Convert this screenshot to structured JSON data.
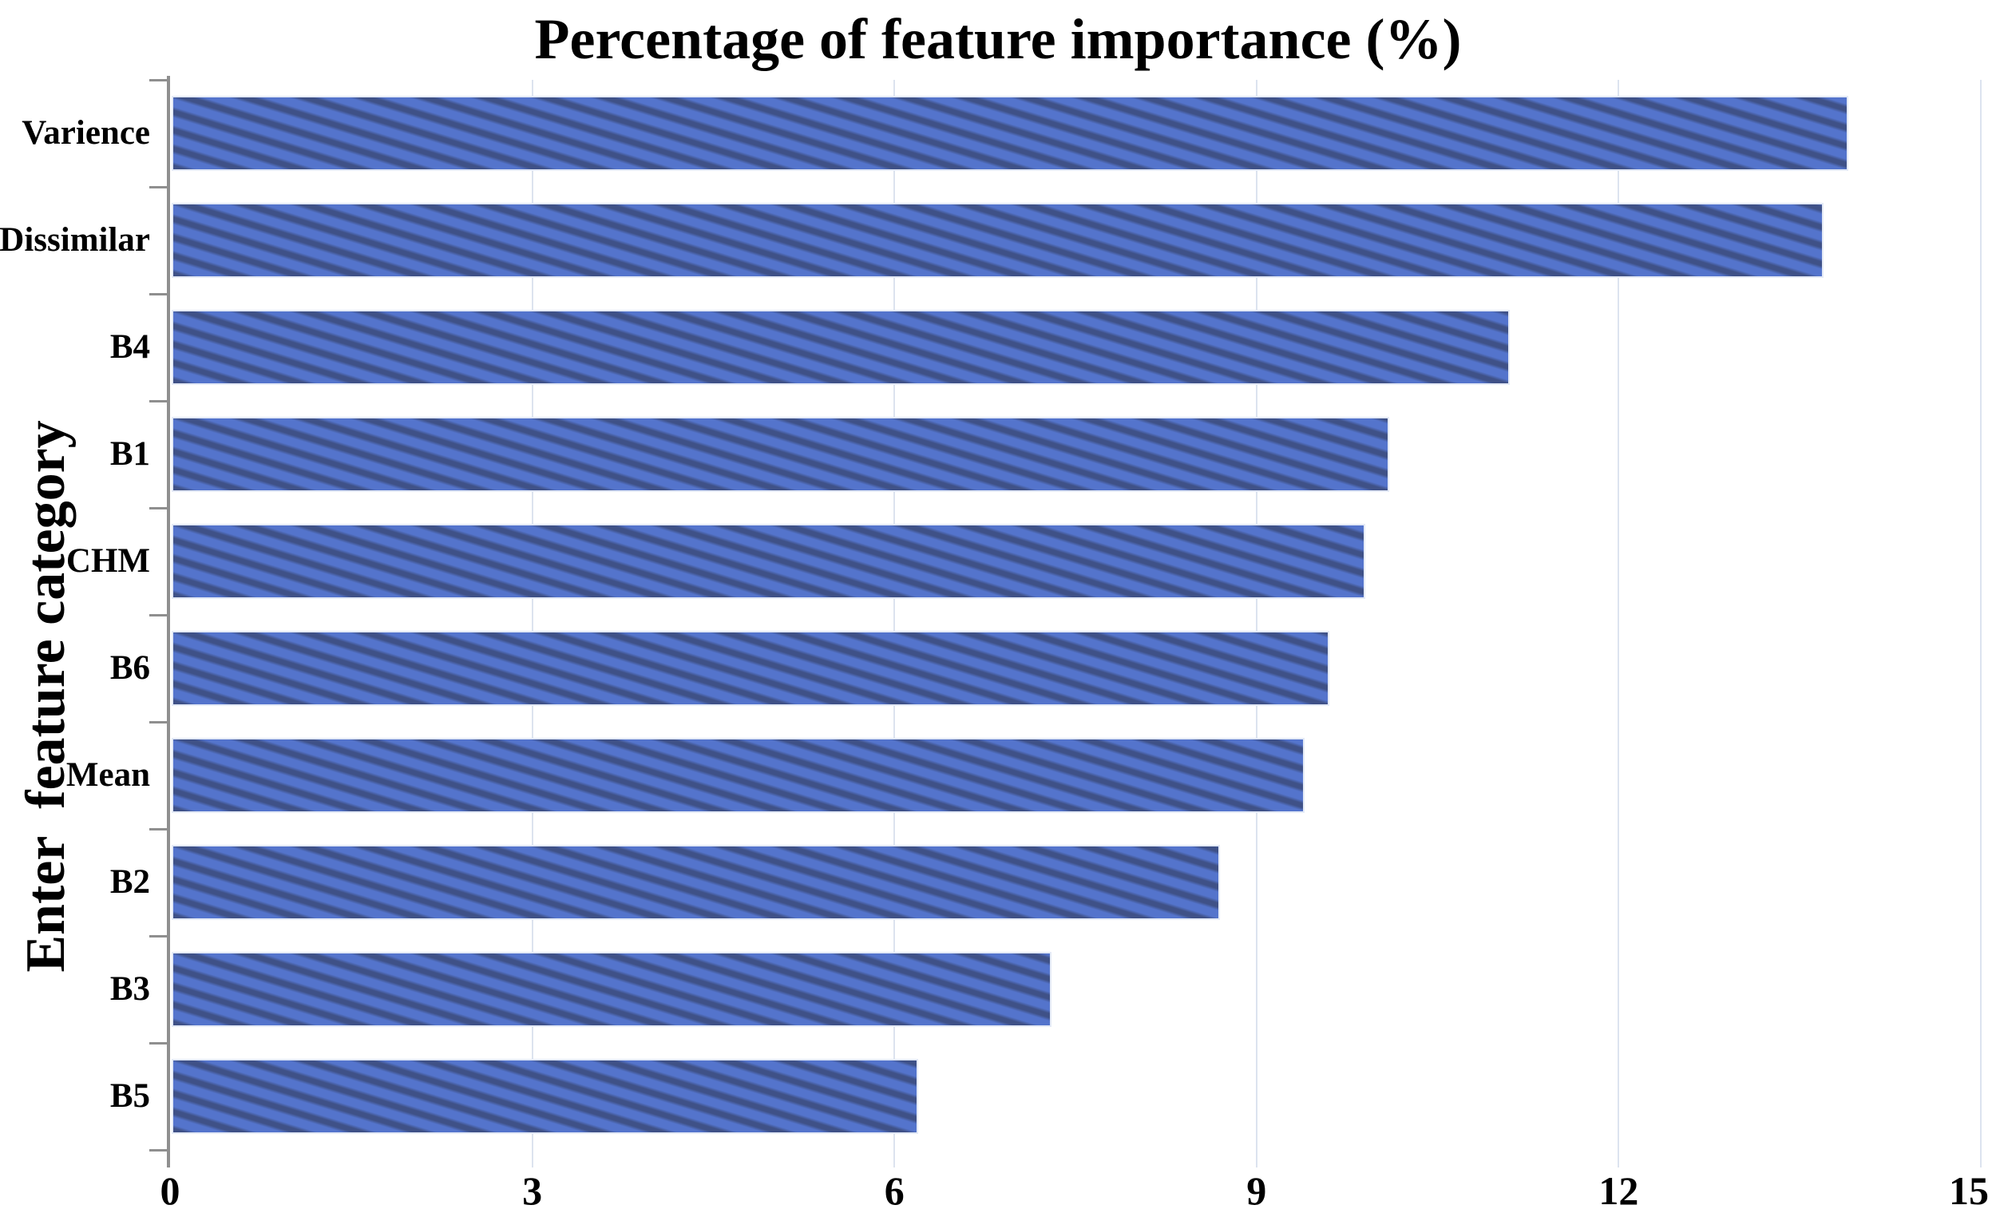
{
  "chart_data": {
    "type": "bar",
    "orientation": "horizontal",
    "title": "Percentage of feature importance (%)",
    "ylabel": "Enter  feature category",
    "xlabel": "",
    "categories": [
      "Varience",
      "Dissimilar",
      "B4",
      "B1",
      "CHM",
      "B6",
      "Mean",
      "B2",
      "B3",
      "B5"
    ],
    "values": [
      13.9,
      13.7,
      11.1,
      10.1,
      9.9,
      9.6,
      9.4,
      8.7,
      7.3,
      6.2
    ],
    "xlim": [
      0,
      15
    ],
    "x_ticks": [
      0,
      3,
      6,
      9,
      12,
      15
    ],
    "x_tick_labels": [
      "0",
      "3",
      "6",
      "9",
      "12",
      "15"
    ],
    "grid": true,
    "legend": false,
    "hatch_style": "diagonal-down",
    "colors": {
      "bar_fill": "#5474CC",
      "bar_hatch": "#3F5187",
      "bar_border": "#E4EAF6",
      "gridline": "#DCE3EF",
      "axis": "#8F8F8F",
      "text": "#000000",
      "background": "#FFFFFF"
    }
  }
}
